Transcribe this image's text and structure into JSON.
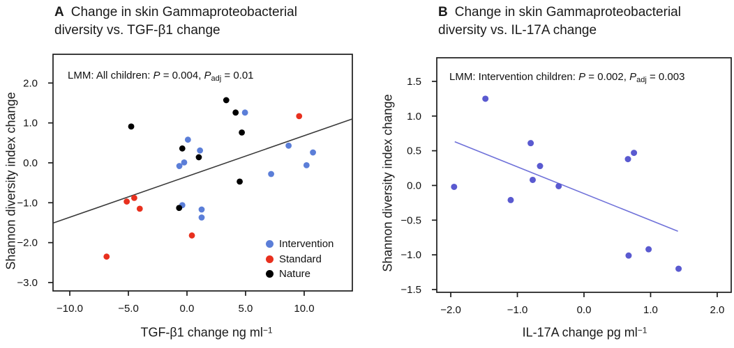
{
  "panels": [
    {
      "letter": "A",
      "title_lines": [
        "Change in skin Gammaproteobacterial",
        "diversity vs. TGF-β1 change"
      ],
      "annotation": {
        "lead": "LMM: All children: ",
        "p1": "P",
        "mid": " = 0.004, ",
        "p2": "P",
        "sub": "adj",
        "tail": " = 0.01"
      },
      "ylabel": "Shannon diversity index change",
      "xlabel_main": "TGF-β1 change ng ml",
      "xlabel_sup": "−1"
    },
    {
      "letter": "B",
      "title_lines": [
        "Change in skin Gammaproteobacterial",
        "diversity vs. IL-17A change"
      ],
      "annotation": {
        "lead": "LMM: Intervention children: ",
        "p1": "P",
        "mid": " = 0.002, ",
        "p2": "P",
        "sub": "adj",
        "tail": " = 0.003"
      },
      "ylabel": "Shannon diversity index change",
      "xlabel_main": "IL-17A change pg ml",
      "xlabel_sup": "−1"
    }
  ],
  "legend": {
    "items": [
      {
        "label": "Intervention",
        "color": "#5b7ed8"
      },
      {
        "label": "Standard",
        "color": "#e8301e"
      },
      {
        "label": "Nature",
        "color": "#000000"
      }
    ]
  },
  "chart_data": [
    {
      "id": "A",
      "type": "scatter",
      "title": "A Change in skin Gammaproteobacterial diversity vs. TGF-β1 change",
      "xlabel": "TGF-β1 change ng ml−1",
      "ylabel": "Shannon diversity index change",
      "annotation": "LMM: All children: P = 0.004, Padj = 0.01",
      "xlim": [
        -11.43,
        14.11
      ],
      "ylim": [
        -3.21,
        2.72
      ],
      "x_ticks": [
        -10,
        -5,
        0,
        5,
        10
      ],
      "x_tick_labels": [
        "−10.0",
        "−5.0",
        "0.0",
        "5.0",
        "10.0"
      ],
      "y_ticks": [
        2,
        1,
        0,
        -1,
        -2,
        -3
      ],
      "y_tick_labels": [
        "2.0",
        "1.0",
        "0.0",
        "−1.0",
        "−2.0",
        "−3.0"
      ],
      "grid": false,
      "legend_position": "inside-bottom-right",
      "point_radius": 4.4,
      "series": [
        {
          "name": "Intervention",
          "color": "#5b7ed8",
          "points": [
            [
              4.95,
              1.26
            ],
            [
              0.08,
              0.58
            ],
            [
              1.11,
              0.31
            ],
            [
              -0.24,
              0.01
            ],
            [
              -0.65,
              -0.08
            ],
            [
              8.67,
              0.43
            ],
            [
              10.75,
              0.26
            ],
            [
              10.2,
              -0.06
            ],
            [
              7.18,
              -0.28
            ],
            [
              -0.4,
              -1.06
            ],
            [
              1.25,
              -1.17
            ],
            [
              1.25,
              -1.37
            ]
          ]
        },
        {
          "name": "Standard",
          "color": "#e8301e",
          "points": [
            [
              9.57,
              1.17
            ],
            [
              -5.14,
              -0.97
            ],
            [
              -4.5,
              -0.88
            ],
            [
              -4.03,
              -1.15
            ],
            [
              0.42,
              -1.82
            ],
            [
              -6.86,
              -2.35
            ]
          ]
        },
        {
          "name": "Nature",
          "color": "#000000",
          "points": [
            [
              3.35,
              1.57
            ],
            [
              4.15,
              1.26
            ],
            [
              -4.76,
              0.91
            ],
            [
              4.68,
              0.76
            ],
            [
              -0.4,
              0.36
            ],
            [
              1.01,
              0.14
            ],
            [
              4.5,
              -0.47
            ],
            [
              -0.67,
              -1.13
            ]
          ]
        }
      ],
      "trend_line": {
        "x1": -11.43,
        "y1": -1.51,
        "x2": 14.11,
        "y2": 1.1,
        "color": "#3a3a3a"
      }
    },
    {
      "id": "B",
      "type": "scatter",
      "title": "B Change in skin Gammaproteobacterial diversity vs. IL-17A change",
      "xlabel": "IL-17A change pg ml−1",
      "ylabel": "Shannon diversity index change",
      "annotation": "LMM: Intervention children: P = 0.002, Padj = 0.003",
      "xlim": [
        -2.21,
        2.21
      ],
      "ylim": [
        -1.54,
        1.84
      ],
      "x_ticks": [
        -2,
        -1,
        0,
        1,
        2
      ],
      "x_tick_labels": [
        "−2.0",
        "−1.0",
        "0.0",
        "1.0",
        "2.0"
      ],
      "y_ticks": [
        1.5,
        1,
        0.5,
        0,
        -0.5,
        -1,
        -1.5
      ],
      "y_tick_labels": [
        "1.5",
        "1.0",
        "0.5",
        "0.0",
        "−0.5",
        "−1.0",
        "−1.5"
      ],
      "grid": false,
      "point_radius": 4.5,
      "series": [
        {
          "name": "Intervention",
          "color": "#5a5ad0",
          "points": [
            [
              -1.48,
              1.25
            ],
            [
              -1.95,
              -0.02
            ],
            [
              -0.8,
              0.61
            ],
            [
              -0.66,
              0.28
            ],
            [
              -0.77,
              0.08
            ],
            [
              -0.38,
              -0.01
            ],
            [
              -1.1,
              -0.21
            ],
            [
              0.66,
              0.38
            ],
            [
              0.75,
              0.47
            ],
            [
              0.67,
              -1.01
            ],
            [
              0.97,
              -0.92
            ],
            [
              1.42,
              -1.2
            ]
          ]
        }
      ],
      "trend_line": {
        "x1": -1.94,
        "y1": 0.63,
        "x2": 1.41,
        "y2": -0.66,
        "color": "#6f71d9"
      }
    }
  ]
}
